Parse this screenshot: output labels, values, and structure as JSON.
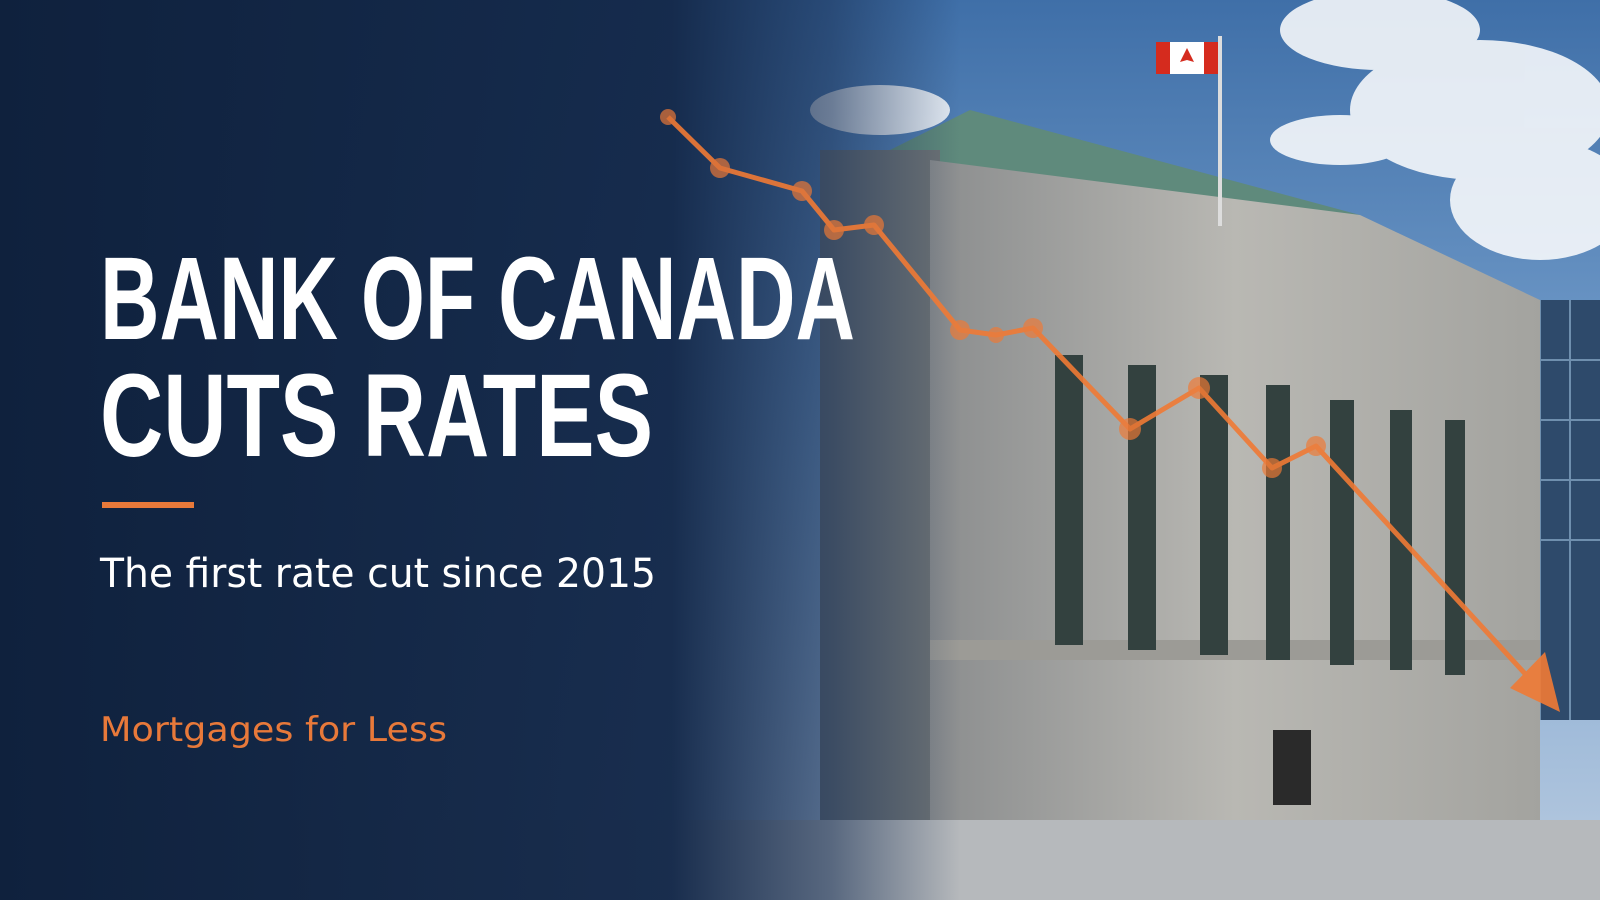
{
  "headline": {
    "line1": "BANK OF CANADA",
    "line2": "CUTS RATES"
  },
  "subtitle": "The first rate cut since 2015",
  "brand": "Mortgages for Less"
}
